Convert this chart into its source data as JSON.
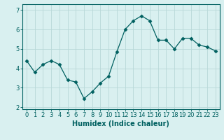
{
  "xlabel": "Humidex (Indice chaleur)",
  "x_values": [
    0,
    1,
    2,
    3,
    4,
    5,
    6,
    7,
    8,
    9,
    10,
    11,
    12,
    13,
    14,
    15,
    16,
    17,
    18,
    19,
    20,
    21,
    22,
    23
  ],
  "y_values": [
    4.4,
    3.8,
    4.2,
    4.4,
    4.2,
    3.4,
    3.3,
    2.45,
    2.8,
    3.25,
    3.6,
    4.85,
    6.0,
    6.45,
    6.7,
    6.45,
    5.45,
    5.45,
    5.0,
    5.55,
    5.55,
    5.2,
    5.1,
    4.9
  ],
  "ylim": [
    1.9,
    7.3
  ],
  "yticks": [
    2,
    3,
    4,
    5,
    6,
    7
  ],
  "line_color": "#006060",
  "marker": "D",
  "marker_size": 2.5,
  "bg_color": "#d9f0f0",
  "grid_color": "#b8d8d8",
  "spine_color": "#006060",
  "label_color": "#006060",
  "tick_color": "#006060",
  "label_fontsize": 7,
  "tick_fontsize": 6
}
